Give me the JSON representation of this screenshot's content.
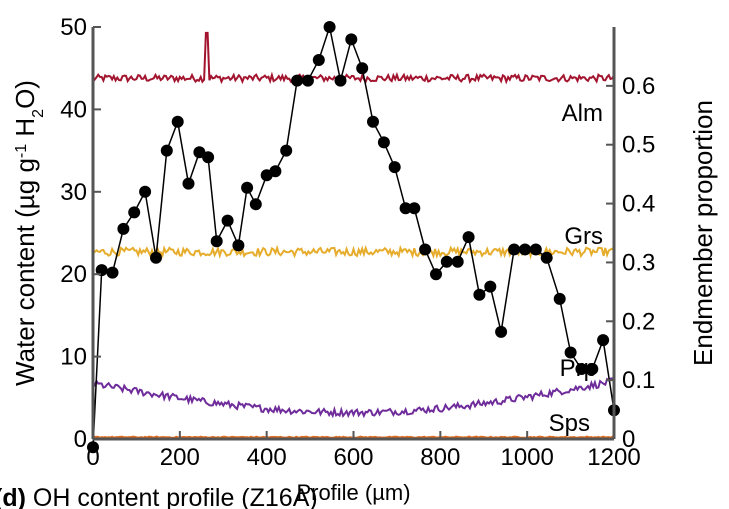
{
  "chart_data": {
    "type": "line",
    "xlabel": "Profile (µm)",
    "ylabel_left": "Water content (µg g-1 H2O)",
    "ylabel_right": "Endmember proportion",
    "xlim": [
      0,
      1200
    ],
    "ylim_left": [
      0,
      50
    ],
    "ylim_right": [
      0,
      0.7
    ],
    "x_ticks": [
      "0",
      "200",
      "400",
      "600",
      "800",
      "1000",
      "1200"
    ],
    "y_ticks_left": [
      "0",
      "10",
      "20",
      "30",
      "40",
      "50"
    ],
    "y_ticks_right": [
      "0",
      "0.1",
      "0.2",
      "0.3",
      "0.4",
      "0.5",
      "0.6"
    ],
    "water": {
      "name": "Water content",
      "color": "#000000",
      "x": [
        0,
        20,
        45,
        70,
        95,
        120,
        145,
        170,
        195,
        220,
        245,
        265,
        285,
        310,
        335,
        355,
        375,
        400,
        420,
        445,
        470,
        495,
        520,
        545,
        570,
        595,
        620,
        645,
        670,
        695,
        720,
        740,
        765,
        790,
        815,
        840,
        865,
        890,
        915,
        940,
        970,
        995,
        1020,
        1045,
        1075,
        1100,
        1125,
        1150,
        1175,
        1200
      ],
      "y": [
        -1,
        20.5,
        20.2,
        25.5,
        27.5,
        30,
        22,
        35,
        38.5,
        31,
        34.8,
        34.2,
        24,
        26.5,
        23.5,
        30.5,
        28.5,
        32,
        32.5,
        35,
        43.5,
        43.5,
        46,
        50,
        43.5,
        48.5,
        45,
        38.5,
        36,
        33,
        28,
        28,
        23,
        20,
        21.5,
        21.5,
        24.5,
        17.5,
        18.5,
        13,
        23,
        23,
        23,
        22,
        17,
        10.5,
        8.5,
        8.5,
        12,
        3.5
      ]
    },
    "series": [
      {
        "name": "Alm",
        "color": "#a3142f",
        "baseline": 0.613,
        "amplitude": 0.006,
        "spike_x": 262,
        "spike_y": 0.69
      },
      {
        "name": "Grs",
        "color": "#e6ac2c",
        "baseline": 0.318,
        "amplitude": 0.007
      },
      {
        "name": "Prp",
        "color": "#6f2c9b",
        "start": 0.094,
        "mid": 0.045,
        "end": 0.098,
        "amplitude": 0.006
      },
      {
        "name": "Sps",
        "color": "#e06a1f",
        "baseline": 0.003,
        "amplitude": 0.001
      }
    ]
  },
  "caption": {
    "panel": "(d)",
    "text": "OH content profile (Z16A)"
  }
}
